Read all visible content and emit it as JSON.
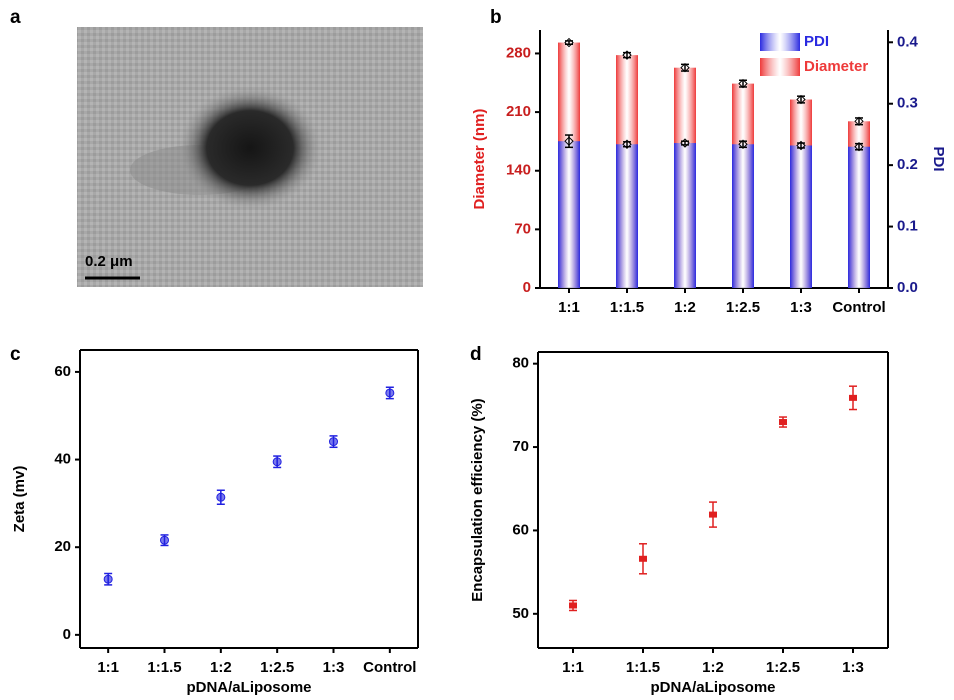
{
  "panel_labels": [
    "a",
    "b",
    "c",
    "d"
  ],
  "image": {
    "scale_bar": "0.2 μm"
  },
  "chart_data": [
    {
      "type": "bar",
      "categories": [
        "1:1",
        "1:1.5",
        "1:2",
        "1:2.5",
        "1:3",
        "Control"
      ],
      "series": [
        {
          "name": "PDI",
          "color": "#2a2ae0",
          "axis": "y2",
          "values": [
            0.239,
            0.234,
            0.236,
            0.234,
            0.232,
            0.23
          ],
          "errors": [
            0.01,
            0.004,
            0.003,
            0.005,
            0.004,
            0.005
          ]
        },
        {
          "name": "Diameter",
          "color": "#ee3a3a",
          "values": [
            293,
            278,
            263,
            244,
            225,
            199
          ],
          "errors": [
            2,
            3,
            4,
            4,
            4,
            4
          ]
        }
      ],
      "ylabel": "Diameter (nm)",
      "y2label": "PDI",
      "ylim": [
        0,
        308
      ],
      "yticks": [
        0,
        70,
        140,
        210,
        280
      ],
      "y2lim": [
        0,
        0.42
      ],
      "y2ticks": [
        {
          "value": 0,
          "label": "0.0"
        },
        0.1,
        0.2,
        0.3,
        0.4
      ],
      "legend": "upper right"
    },
    {
      "type": "scatter",
      "marker": "circle",
      "color": "#2020e0",
      "categories": [
        "1:1",
        "1:1.5",
        "1:2",
        "1:2.5",
        "1:3",
        "Control"
      ],
      "values": [
        12.7,
        21.6,
        31.4,
        39.5,
        44.1,
        55.2
      ],
      "errors": [
        1.3,
        1.2,
        1.6,
        1.3,
        1.3,
        1.3
      ],
      "xlabel": "pDNA/aLiposome",
      "ylabel": "Zeta (mv)",
      "ylim": [
        -3,
        65
      ],
      "yticks": [
        0,
        20,
        40,
        60
      ]
    },
    {
      "type": "scatter",
      "marker": "square",
      "color": "#e02020",
      "categories": [
        "1:1",
        "1:1.5",
        "1:2",
        "1:2.5",
        "1:3"
      ],
      "values": [
        51.0,
        56.6,
        61.9,
        73.0,
        75.9
      ],
      "errors": [
        0.6,
        1.8,
        1.5,
        0.6,
        1.4
      ],
      "xlabel": "pDNA/aLiposome",
      "ylabel": "Encapsulation efficiency (%)",
      "ylim": [
        45.9,
        81.4
      ],
      "yticks": [
        50,
        60,
        70,
        80
      ]
    }
  ]
}
